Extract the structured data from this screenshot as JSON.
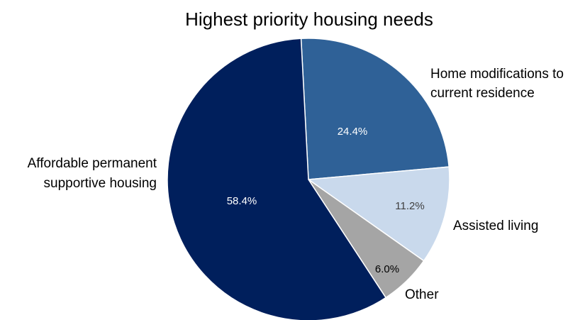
{
  "chart_data": {
    "type": "pie",
    "title": "Highest priority housing needs",
    "start_angle_deg": -3,
    "direction": "clockwise",
    "slices": [
      {
        "name": "Home modifications to current residence",
        "label_lines": [
          "Home modifications to",
          "current residence"
        ],
        "value": 24.4,
        "value_label": "24.4%",
        "color": "#2F6197",
        "label_color": "#FFFFFF"
      },
      {
        "name": "Assisted living",
        "label_lines": [
          "Assisted living"
        ],
        "value": 11.2,
        "value_label": "11.2%",
        "color": "#C9D9EC",
        "label_color": "#404040"
      },
      {
        "name": "Other",
        "label_lines": [
          "Other"
        ],
        "value": 6.0,
        "value_label": "6.0%",
        "color": "#A5A5A5",
        "label_color": "#000000"
      },
      {
        "name": "Affordable permanent supportive housing",
        "label_lines": [
          "Affordable permanent",
          "supportive housing"
        ],
        "value": 58.4,
        "value_label": "58.4%",
        "color": "#001F5C",
        "label_color": "#FFFFFF"
      }
    ]
  }
}
